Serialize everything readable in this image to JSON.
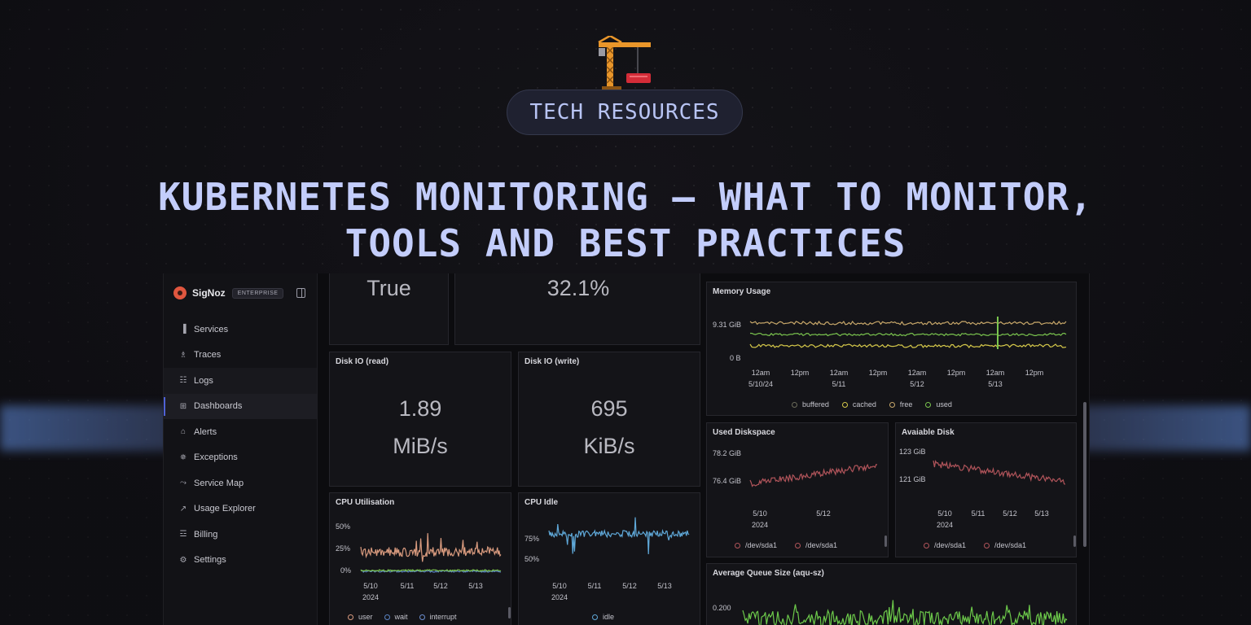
{
  "banner": {
    "badge": "TECH RESOURCES",
    "title_line1": "KUBERNETES MONITORING – WHAT TO MONITOR,",
    "title_line2": "TOOLS AND BEST PRACTICES"
  },
  "app": {
    "brand": "SigNoz",
    "edition": "ENTERPRISE",
    "nav": [
      {
        "label": "Services",
        "icon": "bar-chart-icon"
      },
      {
        "label": "Traces",
        "icon": "traces-icon"
      },
      {
        "label": "Logs",
        "icon": "logs-scroll-icon"
      },
      {
        "label": "Dashboards",
        "icon": "grid-icon"
      },
      {
        "label": "Alerts",
        "icon": "bell-icon"
      },
      {
        "label": "Exceptions",
        "icon": "bug-icon"
      },
      {
        "label": "Service Map",
        "icon": "route-icon"
      },
      {
        "label": "Usage Explorer",
        "icon": "line-chart-icon"
      },
      {
        "label": "Billing",
        "icon": "receipt-icon"
      },
      {
        "label": "Settings",
        "icon": "gear-icon"
      }
    ],
    "active_nav": "Dashboards"
  },
  "panels": {
    "stat_true": {
      "value": "True"
    },
    "stat_pct": {
      "value": "32.1%"
    },
    "disk_read": {
      "title": "Disk IO (read)",
      "value": "1.89",
      "unit": "MiB/s"
    },
    "disk_write": {
      "title": "Disk IO (write)",
      "value": "695",
      "unit": "KiB/s"
    },
    "memory": {
      "title": "Memory Usage",
      "y_ticks": [
        "9.31 GiB",
        "0 B"
      ],
      "x_ticks": [
        "12am\n5/10/24",
        "12pm",
        "12am\n5/11",
        "12pm",
        "12am\n5/12",
        "12pm",
        "12am\n5/13",
        "12pm"
      ],
      "legend": [
        "buffered",
        "cached",
        "free",
        "used"
      ]
    },
    "used_disk": {
      "title": "Used Diskspace",
      "y_ticks": [
        "78.2 GiB",
        "76.4 GiB"
      ],
      "x_ticks": [
        "5/10\n2024",
        "5/12"
      ],
      "legend": [
        "/dev/sda1",
        "/dev/sda1"
      ]
    },
    "avail_disk": {
      "title": "Avaiable Disk",
      "y_ticks": [
        "123 GiB",
        "121 GiB"
      ],
      "x_ticks": [
        "5/10\n2024",
        "5/11",
        "5/12",
        "5/13"
      ],
      "legend": [
        "/dev/sda1",
        "/dev/sda1"
      ]
    },
    "cpu_util": {
      "title": "CPU Utilisation",
      "y_ticks": [
        "50%",
        "25%",
        "0%"
      ],
      "x_ticks": [
        "5/10\n2024",
        "5/11",
        "5/12",
        "5/13"
      ],
      "legend": [
        "user",
        "wait",
        "interrupt"
      ]
    },
    "cpu_idle": {
      "title": "CPU Idle",
      "y_ticks": [
        "75%",
        "50%"
      ],
      "x_ticks": [
        "5/10\n2024",
        "5/11",
        "5/12",
        "5/13"
      ],
      "legend": [
        "idle"
      ]
    },
    "queue": {
      "title": "Average Queue Size (aqu-sz)",
      "y_ticks": [
        "0.200"
      ]
    }
  },
  "colors": {
    "buffered": "#6b6b5a",
    "cached": "#d6c94a",
    "free": "#c8a86a",
    "used": "#7ac44e",
    "disk": "#b0545a",
    "cpu_user": "#d89a7e",
    "cpu_wait": "#5b84c4",
    "cpu_interrupt": "#6c8fd0",
    "idle": "#5fa8d8",
    "queue": "#6cc94a",
    "accent": "#4f62d6"
  }
}
